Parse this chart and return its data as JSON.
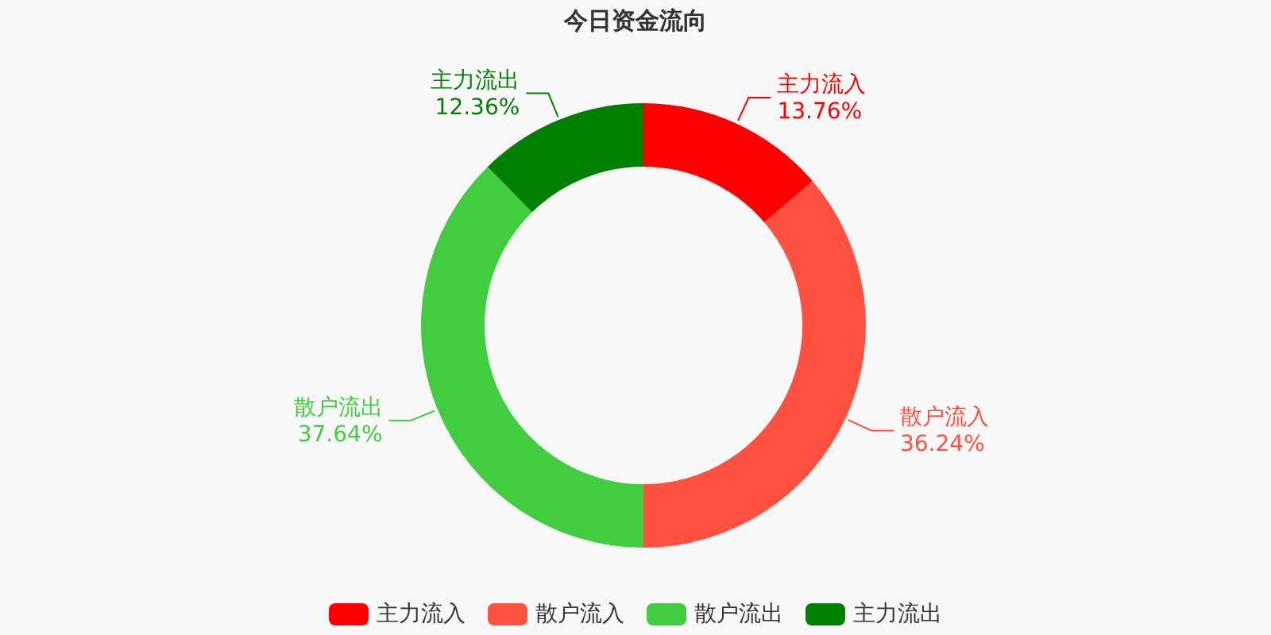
{
  "chart_data": {
    "type": "donut",
    "title": "今日资金流向",
    "categories": [
      "主力流入",
      "散户流入",
      "散户流出",
      "主力流出"
    ],
    "values": [
      13.76,
      36.24,
      37.64,
      12.36
    ],
    "value_labels": [
      "13.76%",
      "36.24%",
      "37.64%",
      "12.36%"
    ],
    "colors": [
      "#ff0000",
      "#ff5040",
      "#40cd40",
      "#007f00"
    ],
    "legend": "bottom"
  }
}
